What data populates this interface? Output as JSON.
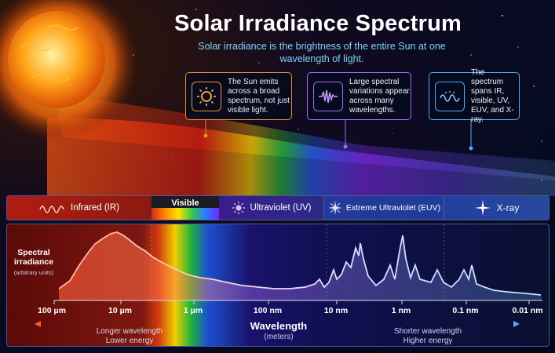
{
  "title": "Solar Irradiance Spectrum",
  "subtitle": "Solar irradiance is the brightness of the entire Sun at one wavelength of light.",
  "callouts": [
    {
      "icon": "sun-icon",
      "text": "The Sun emits across a broad spectrum, not just visible light.",
      "color": "#e8902e"
    },
    {
      "icon": "wave-icon",
      "text": "Large spectral variations appear across many wavelengths.",
      "color": "#a66cff"
    },
    {
      "icon": "spectrum-wave-icon",
      "text": "The spectrum spans IR, visible, UV, EUV, and X-ray.",
      "color": "#58a8ff"
    }
  ],
  "bands": [
    {
      "icon": "wavy-line-icon",
      "label": "Infrared (IR)"
    },
    {
      "icon": "",
      "label": "Visible"
    },
    {
      "icon": "ultraviolet-sun-icon",
      "label": "Ultraviolet (UV)"
    },
    {
      "icon": "starburst-icon",
      "label": "Extreme Ultraviolet (EUV)"
    },
    {
      "icon": "xray-star-icon",
      "label": "X-ray"
    }
  ],
  "y_axis": {
    "label_line1": "Spectral",
    "label_line2": "irradiance",
    "units": "(arbitrary units)"
  },
  "x_axis": {
    "label": "Wavelength",
    "units": "(meters)",
    "ticks": [
      "100 µm",
      "10 µm",
      "1 µm",
      "100 nm",
      "10 nm",
      "1 nm",
      "0.1 nm",
      "0.01 nm"
    ]
  },
  "direction_left": {
    "line1": "Longer wavelength",
    "line2": "Lower energy"
  },
  "direction_right": {
    "line1": "Shorter wavelength",
    "line2": "Higher energy"
  },
  "colors": {
    "subtitle": "#7fd3ff",
    "ir": "#d1321c",
    "uv": "#6a4cff",
    "euv": "#3e7cff",
    "xray": "#5aa8ff"
  }
}
